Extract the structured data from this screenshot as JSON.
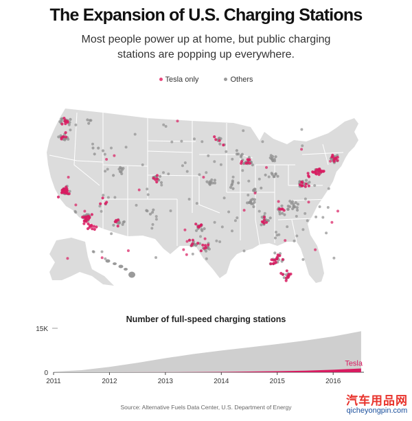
{
  "header": {
    "title": "The Expansion of U.S. Charging Stations",
    "subtitle_line1": "Most people power up at home, but public charging",
    "subtitle_line2": "stations are popping up everywhere."
  },
  "legend": {
    "items": [
      {
        "label": "Tesla only",
        "color": "#e8467c"
      },
      {
        "label": "Others",
        "color": "#9a9a9a"
      }
    ]
  },
  "colors": {
    "land": "#dcdcdc",
    "state_lines": "#ffffff",
    "tesla": "#d81b60",
    "others": "#8e8e8e",
    "area_fill": "#cfcfcf"
  },
  "chart_data": [
    {
      "type": "scatter",
      "title": "",
      "description_series": [
        "Tesla only",
        "Others"
      ],
      "series": [
        {
          "name": "Tesla only",
          "clusters": [
            {
              "lon": -122.4,
              "lat": 37.7,
              "n": 24
            },
            {
              "lon": -118.3,
              "lat": 34.0,
              "n": 22
            },
            {
              "lon": -117.1,
              "lat": 32.8,
              "n": 10
            },
            {
              "lon": -122.3,
              "lat": 47.6,
              "n": 8
            },
            {
              "lon": -122.7,
              "lat": 45.5,
              "n": 6
            },
            {
              "lon": -74.0,
              "lat": 40.7,
              "n": 18
            },
            {
              "lon": -71.1,
              "lat": 42.3,
              "n": 10
            },
            {
              "lon": -77.0,
              "lat": 38.9,
              "n": 9
            },
            {
              "lon": -80.2,
              "lat": 25.9,
              "n": 10
            },
            {
              "lon": -82.4,
              "lat": 27.9,
              "n": 7
            },
            {
              "lon": -81.4,
              "lat": 28.5,
              "n": 6
            },
            {
              "lon": -84.4,
              "lat": 33.7,
              "n": 6
            },
            {
              "lon": -87.7,
              "lat": 41.9,
              "n": 8
            },
            {
              "lon": -95.4,
              "lat": 29.8,
              "n": 6
            },
            {
              "lon": -97.7,
              "lat": 30.3,
              "n": 5
            },
            {
              "lon": -96.8,
              "lat": 32.8,
              "n": 6
            },
            {
              "lon": -105.0,
              "lat": 39.7,
              "n": 5
            },
            {
              "lon": -112.0,
              "lat": 33.4,
              "n": 5
            },
            {
              "lon": -115.1,
              "lat": 36.2,
              "n": 4
            },
            {
              "lon": -80.8,
              "lat": 35.2,
              "n": 5
            },
            {
              "lon": -75.2,
              "lat": 40.0,
              "n": 5
            },
            {
              "lon": -93.3,
              "lat": 45.0,
              "n": 4
            }
          ]
        },
        {
          "name": "Others",
          "clusters": [
            {
              "lon": -122.3,
              "lat": 37.8,
              "n": 16
            },
            {
              "lon": -118.2,
              "lat": 34.1,
              "n": 14
            },
            {
              "lon": -122.6,
              "lat": 45.5,
              "n": 14
            },
            {
              "lon": -122.3,
              "lat": 47.6,
              "n": 12
            },
            {
              "lon": -111.9,
              "lat": 40.7,
              "n": 9
            },
            {
              "lon": -105.0,
              "lat": 39.7,
              "n": 10
            },
            {
              "lon": -112.0,
              "lat": 33.5,
              "n": 10
            },
            {
              "lon": -97.7,
              "lat": 30.3,
              "n": 9
            },
            {
              "lon": -96.8,
              "lat": 32.8,
              "n": 10
            },
            {
              "lon": -95.4,
              "lat": 29.8,
              "n": 9
            },
            {
              "lon": -94.6,
              "lat": 39.1,
              "n": 10
            },
            {
              "lon": -90.2,
              "lat": 38.6,
              "n": 7
            },
            {
              "lon": -87.7,
              "lat": 41.9,
              "n": 14
            },
            {
              "lon": -83.0,
              "lat": 42.4,
              "n": 10
            },
            {
              "lon": -84.4,
              "lat": 33.8,
              "n": 14
            },
            {
              "lon": -86.8,
              "lat": 36.2,
              "n": 12
            },
            {
              "lon": -85.8,
              "lat": 38.2,
              "n": 6
            },
            {
              "lon": -78.7,
              "lat": 35.8,
              "n": 14
            },
            {
              "lon": -80.8,
              "lat": 35.2,
              "n": 9
            },
            {
              "lon": -77.0,
              "lat": 38.9,
              "n": 12
            },
            {
              "lon": -74.0,
              "lat": 40.7,
              "n": 14
            },
            {
              "lon": -71.1,
              "lat": 42.4,
              "n": 14
            },
            {
              "lon": -82.9,
              "lat": 40.0,
              "n": 8
            },
            {
              "lon": -80.2,
              "lat": 25.9,
              "n": 8
            },
            {
              "lon": -81.4,
              "lat": 28.5,
              "n": 8
            },
            {
              "lon": -82.5,
              "lat": 27.9,
              "n": 6
            },
            {
              "lon": -93.3,
              "lat": 45.0,
              "n": 6
            },
            {
              "lon": -89.4,
              "lat": 43.1,
              "n": 6
            },
            {
              "lon": -106.6,
              "lat": 35.1,
              "n": 5
            },
            {
              "lon": -116.2,
              "lat": 43.6,
              "n": 4
            },
            {
              "lon": -117.4,
              "lat": 47.7,
              "n": 4
            }
          ]
        }
      ],
      "inset_regions": [
        "Alaska",
        "Hawaii"
      ]
    },
    {
      "type": "area",
      "title": "Number of full-speed charging stations",
      "x_ticks": [
        "2011",
        "2012",
        "2013",
        "2014",
        "2015",
        "2016"
      ],
      "y_ticks": [
        "0",
        "15K"
      ],
      "ylim": [
        0,
        15000
      ],
      "xlim": [
        2011.0,
        2016.55
      ],
      "series": [
        {
          "name": "",
          "x": [
            2011.0,
            2011.5,
            2012.0,
            2012.5,
            2013.0,
            2013.5,
            2014.0,
            2014.5,
            2015.0,
            2015.5,
            2016.0,
            2016.5
          ],
          "values": [
            200,
            700,
            1800,
            3200,
            4800,
            6200,
            7400,
            8500,
            9600,
            10800,
            12200,
            14000
          ]
        },
        {
          "name": "Tesla",
          "x": [
            2011.0,
            2012.0,
            2013.0,
            2014.0,
            2015.0,
            2015.5,
            2016.0,
            2016.5
          ],
          "values": [
            0,
            0,
            30,
            120,
            350,
            550,
            850,
            1300
          ]
        }
      ],
      "annotations": [
        "Tesla"
      ]
    }
  ],
  "footer": {
    "source": "Source: Alternative Fuels Data Center, U.S. Department of Energy"
  },
  "watermark": {
    "text_cn": "汽车用品网",
    "url": "qicheyongpin.com"
  }
}
